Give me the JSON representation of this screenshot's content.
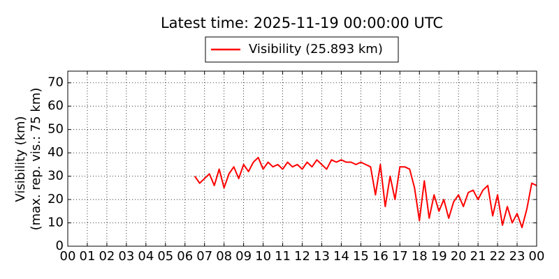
{
  "chart_data": {
    "type": "line",
    "title": "Latest time: 2025-11-19 00:00:00 UTC",
    "ylabel": [
      "Visibility (km)",
      "(max. rep. vis.: 75 km)"
    ],
    "x": [
      6.5,
      6.75,
      7.0,
      7.25,
      7.5,
      7.75,
      8.0,
      8.25,
      8.5,
      8.75,
      9.0,
      9.25,
      9.5,
      9.75,
      10.0,
      10.25,
      10.5,
      10.75,
      11.0,
      11.25,
      11.5,
      11.75,
      12.0,
      12.25,
      12.5,
      12.75,
      13.0,
      13.25,
      13.5,
      13.75,
      14.0,
      14.25,
      14.5,
      14.75,
      15.0,
      15.25,
      15.5,
      15.75,
      16.0,
      16.25,
      16.5,
      16.75,
      17.0,
      17.25,
      17.5,
      17.75,
      18.0,
      18.25,
      18.5,
      18.75,
      19.0,
      19.25,
      19.5,
      19.75,
      20.0,
      20.25,
      20.5,
      20.75,
      21.0,
      21.25,
      21.5,
      21.75,
      22.0,
      22.25,
      22.5,
      22.75,
      23.0,
      23.25,
      23.5,
      23.75,
      24.0
    ],
    "series": [
      {
        "name": "Visibility (25.893 km)",
        "color": "#ff0000",
        "values": [
          30,
          27,
          29,
          31,
          26,
          33,
          25,
          31,
          34,
          29,
          35,
          32,
          36,
          38,
          33,
          36,
          34,
          35,
          33,
          36,
          34,
          35,
          33,
          36,
          34,
          37,
          35,
          33,
          37,
          36,
          37,
          36,
          36,
          35,
          36,
          35,
          34,
          22,
          35,
          17,
          30,
          20,
          34,
          34,
          33,
          25,
          11,
          28,
          12,
          22,
          15,
          20,
          12,
          19,
          22,
          17,
          23,
          24,
          20,
          24,
          26,
          13,
          22,
          9,
          17,
          10,
          14,
          8,
          16,
          27,
          26
        ]
      }
    ],
    "xlim": [
      0,
      24
    ],
    "xticks": [
      {
        "value": 0,
        "label": "00"
      },
      {
        "value": 1,
        "label": "01"
      },
      {
        "value": 2,
        "label": "02"
      },
      {
        "value": 3,
        "label": "03"
      },
      {
        "value": 4,
        "label": "04"
      },
      {
        "value": 5,
        "label": "05"
      },
      {
        "value": 6,
        "label": "06"
      },
      {
        "value": 7,
        "label": "07"
      },
      {
        "value": 8,
        "label": "08"
      },
      {
        "value": 9,
        "label": "09"
      },
      {
        "value": 10,
        "label": "10"
      },
      {
        "value": 11,
        "label": "11"
      },
      {
        "value": 12,
        "label": "12"
      },
      {
        "value": 13,
        "label": "13"
      },
      {
        "value": 14,
        "label": "14"
      },
      {
        "value": 15,
        "label": "15"
      },
      {
        "value": 16,
        "label": "16"
      },
      {
        "value": 17,
        "label": "17"
      },
      {
        "value": 18,
        "label": "18"
      },
      {
        "value": 19,
        "label": "19"
      },
      {
        "value": 20,
        "label": "20"
      },
      {
        "value": 21,
        "label": "21"
      },
      {
        "value": 22,
        "label": "22"
      },
      {
        "value": 23,
        "label": "23"
      },
      {
        "value": 24,
        "label": "00"
      }
    ],
    "ylim": [
      0,
      75
    ],
    "yticks": [
      0,
      10,
      20,
      30,
      40,
      50,
      60,
      70
    ],
    "grid": true
  }
}
